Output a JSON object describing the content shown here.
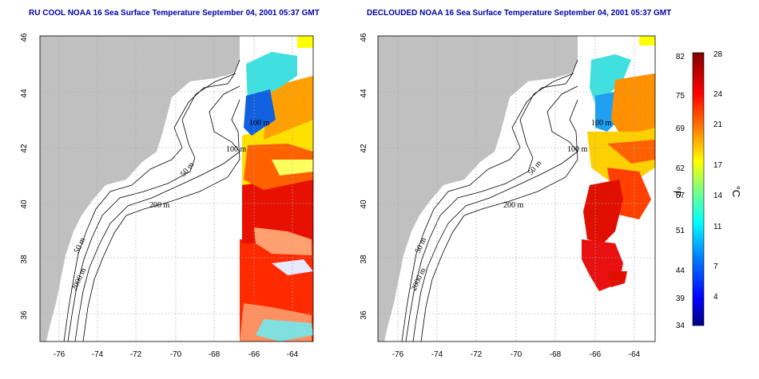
{
  "titles": {
    "left": "RU COOL NOAA 16 Sea Surface Temperature September 04, 2001 05:37 GMT",
    "right": "DECLOUDED NOAA 16 Sea Surface Temperature September 04, 2001 05:37 GMT"
  },
  "axes": {
    "x_ticks": [
      "-76",
      "-74",
      "-72",
      "-70",
      "-68",
      "-66",
      "-64"
    ],
    "y_ticks": [
      "46",
      "44",
      "42",
      "40",
      "38",
      "36"
    ]
  },
  "contour_labels": {
    "left": [
      "100 m",
      "100 m",
      "50 m",
      "200 m",
      "50 m",
      "2000 m"
    ],
    "right": [
      "100 m",
      "100 m",
      "50 m",
      "200 m",
      "50 m",
      "2000 m"
    ]
  },
  "colorbar": {
    "fahrenheit_ticks": [
      "82",
      "75",
      "69",
      "62",
      "57",
      "51",
      "44",
      "39",
      "34"
    ],
    "celsius_ticks": [
      "28",
      "24",
      "21",
      "17",
      "14",
      "11",
      "7",
      "4"
    ],
    "fahrenheit_unit": "°F",
    "celsius_unit": "°C",
    "range_c": [
      1,
      28
    ],
    "colors": [
      "#000080",
      "#0000ff",
      "#0080ff",
      "#00ffff",
      "#80ff80",
      "#ffff00",
      "#ff8000",
      "#ff0000",
      "#800000"
    ]
  },
  "colors": {
    "land": "#c0c0c0",
    "ocean": "#ffffff",
    "title": "#0000aa"
  }
}
